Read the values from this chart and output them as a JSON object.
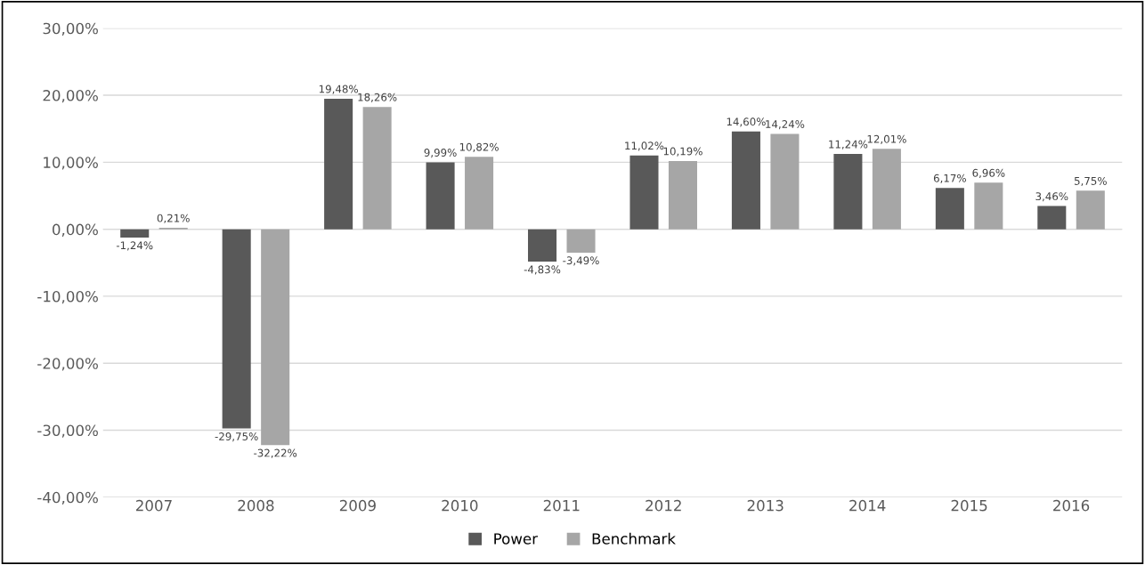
{
  "chart_data": {
    "type": "bar",
    "categories": [
      "2007",
      "2008",
      "2009",
      "2010",
      "2011",
      "2012",
      "2013",
      "2014",
      "2015",
      "2016"
    ],
    "series": [
      {
        "name": "Power",
        "color": "#595959",
        "values": [
          -1.24,
          -29.75,
          19.48,
          9.99,
          -4.83,
          11.02,
          14.6,
          11.24,
          6.17,
          3.46
        ],
        "value_labels": [
          "-1,24%",
          "-29,75%",
          "19,48%",
          "9,99%",
          "-4,83%",
          "11,02%",
          "14,60%",
          "11,24%",
          "6,17%",
          "3,46%"
        ]
      },
      {
        "name": "Benchmark",
        "color": "#a6a6a6",
        "values": [
          0.21,
          -32.22,
          18.26,
          10.82,
          -3.49,
          10.19,
          14.24,
          12.01,
          6.96,
          5.75
        ],
        "value_labels": [
          "0,21%",
          "-32,22%",
          "18,26%",
          "10,82%",
          "-3,49%",
          "10,19%",
          "14,24%",
          "12,01%",
          "6,96%",
          "5,75%"
        ]
      }
    ],
    "ylim": [
      -40,
      30
    ],
    "yticks": [
      {
        "value": -40,
        "label": "-40,00%"
      },
      {
        "value": -30,
        "label": "-30,00%"
      },
      {
        "value": -20,
        "label": "-20,00%"
      },
      {
        "value": -10,
        "label": "-10,00%"
      },
      {
        "value": 0,
        "label": "0,00%"
      },
      {
        "value": 10,
        "label": "10,00%"
      },
      {
        "value": 20,
        "label": "20,00%"
      },
      {
        "value": 30,
        "label": "30,00%"
      }
    ],
    "grid": "y",
    "legend": "bottom"
  }
}
